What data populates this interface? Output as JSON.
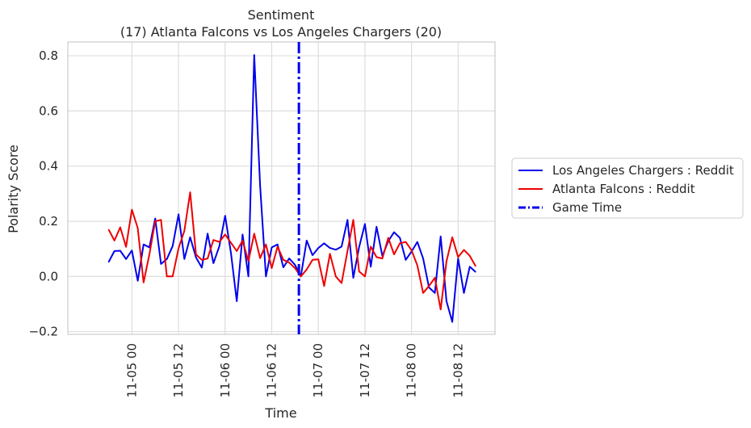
{
  "chart_data": {
    "type": "line",
    "title": "Sentiment",
    "subtitle": "(17) Atlanta Falcons vs Los Angeles Chargers (20)",
    "xlabel": "Time",
    "ylabel": "Polarity Score",
    "ylim": [
      -0.21,
      0.85
    ],
    "yticks": [
      -0.2,
      0.0,
      0.2,
      0.4,
      0.6,
      0.8
    ],
    "ytick_labels": [
      "−0.2",
      "0.0",
      "0.2",
      "0.4",
      "0.6",
      "0.8"
    ],
    "xlim_hours": [
      -16.5,
      93.5
    ],
    "xticks_hours": [
      0,
      12,
      24,
      36,
      48,
      60,
      72,
      84
    ],
    "xtick_labels": [
      "11-05 00",
      "11-05 12",
      "11-06 00",
      "11-06 12",
      "11-07 00",
      "11-07 12",
      "11-08 00",
      "11-08 12"
    ],
    "grid": true,
    "legend_position": "right",
    "game_time_hours": 43.0,
    "series": [
      {
        "name": "Los Angeles Chargers : Reddit",
        "color": "#0000ee",
        "x": [
          -6,
          -4.5,
          -3,
          -1.5,
          0,
          1.5,
          3,
          4.5,
          6,
          7.5,
          9,
          10.5,
          12,
          13.5,
          15,
          16.5,
          18,
          19.5,
          21,
          22.5,
          24,
          25.5,
          27,
          28.5,
          30,
          31.5,
          33,
          34.5,
          36,
          37.5,
          39,
          40.5,
          42,
          43.5,
          45,
          46.5,
          48,
          49.5,
          51,
          52.5,
          54,
          55.5,
          57,
          58.5,
          60,
          61.5,
          63,
          64.5,
          66,
          67.5,
          69,
          70.5,
          72,
          73.5,
          75,
          76.5,
          78,
          79.5,
          81,
          82.5,
          84,
          85.5,
          87,
          88.5
        ],
        "y": [
          0.052,
          0.092,
          0.093,
          0.063,
          0.094,
          -0.016,
          0.116,
          0.105,
          0.21,
          0.045,
          0.063,
          0.11,
          0.225,
          0.063,
          0.142,
          0.069,
          0.032,
          0.155,
          0.048,
          0.109,
          0.22,
          0.085,
          -0.09,
          0.152,
          0.0,
          0.803,
          0.33,
          0.0,
          0.105,
          0.116,
          0.033,
          0.065,
          0.042,
          0.0,
          0.13,
          0.077,
          0.103,
          0.12,
          0.103,
          0.097,
          0.108,
          0.205,
          -0.005,
          0.106,
          0.19,
          0.035,
          0.18,
          0.074,
          0.128,
          0.16,
          0.14,
          0.06,
          0.09,
          0.125,
          0.065,
          -0.04,
          -0.06,
          0.145,
          -0.09,
          -0.165,
          0.065,
          -0.06,
          0.035,
          0.016
        ]
      },
      {
        "name": "Atlanta Falcons : Reddit",
        "color": "#ee0000",
        "x": [
          -6,
          -4.5,
          -3,
          -1.5,
          0,
          1.5,
          3,
          4.5,
          6,
          7.5,
          9,
          10.5,
          12,
          13.5,
          15,
          16.5,
          18,
          19.5,
          21,
          22.5,
          24,
          25.5,
          27,
          28.5,
          30,
          31.5,
          33,
          34.5,
          36,
          37.5,
          39,
          40.5,
          42,
          43.5,
          45,
          46.5,
          48,
          49.5,
          51,
          52.5,
          54,
          55.5,
          57,
          58.5,
          60,
          61.5,
          63,
          64.5,
          66,
          67.5,
          69,
          70.5,
          72,
          73.5,
          75,
          76.5,
          78,
          79.5,
          81,
          82.5,
          84,
          85.5,
          87,
          88.5
        ],
        "y": [
          0.17,
          0.13,
          0.178,
          0.107,
          0.242,
          0.175,
          -0.022,
          0.08,
          0.2,
          0.205,
          0.0,
          0.0,
          0.102,
          0.165,
          0.305,
          0.08,
          0.06,
          0.065,
          0.132,
          0.125,
          0.152,
          0.122,
          0.092,
          0.13,
          0.055,
          0.155,
          0.066,
          0.116,
          0.03,
          0.108,
          0.06,
          0.05,
          0.03,
          0.0,
          0.025,
          0.06,
          0.062,
          -0.035,
          0.082,
          0.0,
          -0.024,
          0.092,
          0.205,
          0.018,
          0.0,
          0.108,
          0.07,
          0.065,
          0.14,
          0.08,
          0.12,
          0.125,
          0.095,
          0.04,
          -0.06,
          -0.035,
          -0.005,
          -0.12,
          0.055,
          0.142,
          0.07,
          0.096,
          0.075,
          0.037
        ]
      }
    ]
  },
  "legend": {
    "items": [
      {
        "label": "Los Angeles Chargers : Reddit",
        "color": "#0000ee",
        "style": "solid"
      },
      {
        "label": "Atlanta Falcons : Reddit",
        "color": "#ee0000",
        "style": "solid"
      },
      {
        "label": "Game Time",
        "color": "#0000ee",
        "style": "dashdot"
      }
    ]
  }
}
